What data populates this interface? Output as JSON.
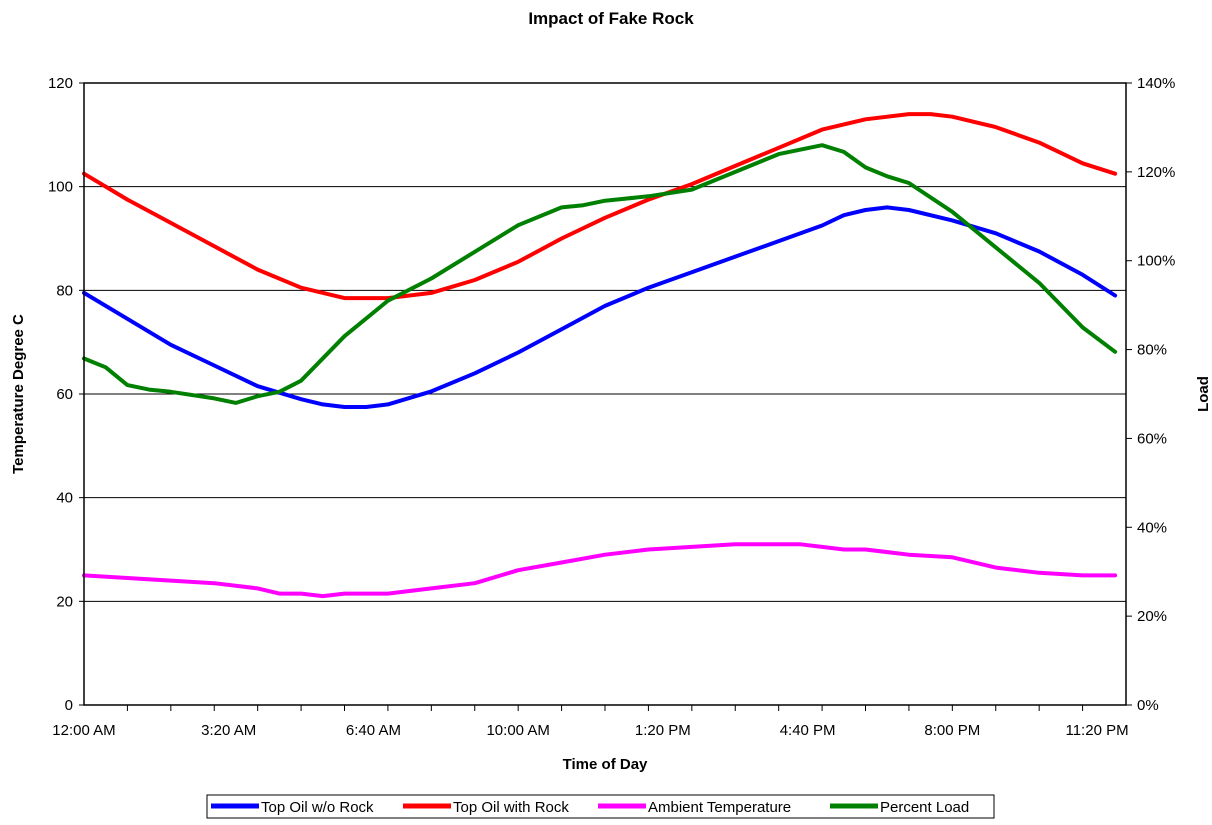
{
  "chart_data": {
    "type": "line",
    "title": "Impact of Fake Rock",
    "xlabel": "Time of Day",
    "ylabel": "Temperature Degree C",
    "y2label": "Load",
    "ylim": [
      0,
      120
    ],
    "y2lim": [
      0,
      1.4
    ],
    "y_ticks": [
      "0",
      "20",
      "40",
      "60",
      "80",
      "100",
      "120"
    ],
    "y2_ticks": [
      "0%",
      "20%",
      "40%",
      "60%",
      "80%",
      "100%",
      "120%",
      "140%"
    ],
    "x_ticks": [
      "12:00 AM",
      "3:20 AM",
      "6:40 AM",
      "10:00 AM",
      "1:20 PM",
      "4:40 PM",
      "8:00 PM",
      "11:20 PM"
    ],
    "x_tick_hours": [
      0,
      3.333,
      6.667,
      10,
      13.333,
      16.667,
      20,
      23.333
    ],
    "xlim_hours": [
      0,
      24
    ],
    "grid": "horizontal",
    "legend_position": "bottom",
    "series": [
      {
        "name": "Top Oil w/o Rock",
        "axis": "left",
        "color": "#0000ff",
        "x_hours": [
          0,
          1,
          2,
          3,
          4,
          5,
          5.5,
          6,
          6.5,
          7,
          8,
          9,
          10,
          11,
          12,
          13,
          14,
          15,
          16,
          17,
          17.5,
          18,
          18.5,
          19,
          20,
          21,
          22,
          23,
          23.75
        ],
        "values": [
          79.5,
          74.5,
          69.5,
          65.5,
          61.5,
          59,
          58,
          57.5,
          57.5,
          58,
          60.5,
          64,
          68,
          72.5,
          77,
          80.5,
          83.5,
          86.5,
          89.5,
          92.5,
          94.5,
          95.5,
          96,
          95.5,
          93.5,
          91,
          87.5,
          83,
          79
        ]
      },
      {
        "name": "Top Oil with Rock",
        "axis": "left",
        "color": "#ff0000",
        "x_hours": [
          0,
          1,
          2,
          3,
          4,
          5,
          6,
          6.5,
          7,
          8,
          9,
          10,
          11,
          12,
          13,
          14,
          15,
          16,
          17,
          18,
          19,
          19.5,
          20,
          21,
          22,
          23,
          23.75
        ],
        "values": [
          102.5,
          97.5,
          93,
          88.5,
          84,
          80.5,
          78.5,
          78.5,
          78.5,
          79.5,
          82,
          85.5,
          90,
          94,
          97.5,
          100.5,
          104,
          107.5,
          111,
          113,
          114,
          114,
          113.5,
          111.5,
          108.5,
          104.5,
          102.5
        ]
      },
      {
        "name": "Ambient Temperature",
        "axis": "left",
        "color": "#ff00ff",
        "x_hours": [
          0,
          1,
          2,
          3,
          4,
          4.5,
          5,
          5.5,
          6,
          7,
          8,
          9,
          10,
          11,
          12,
          13,
          14,
          15,
          15.5,
          16,
          16.5,
          17,
          17.5,
          18,
          19,
          20,
          21,
          22,
          23,
          23.75
        ],
        "values": [
          25,
          24.5,
          24,
          23.5,
          22.5,
          21.5,
          21.5,
          21,
          21.5,
          21.5,
          22.5,
          23.5,
          26,
          27.5,
          29,
          30,
          30.5,
          31,
          31,
          31,
          31,
          30.5,
          30,
          30,
          29,
          28.5,
          26.5,
          25.5,
          25,
          25
        ]
      },
      {
        "name": "Percent Load",
        "axis": "right",
        "color": "#008000",
        "x_hours": [
          0,
          0.5,
          1,
          1.5,
          2,
          3,
          3.5,
          4,
          4.5,
          5,
          6,
          7,
          8,
          9,
          10,
          11,
          11.5,
          12,
          13,
          14,
          15,
          16,
          17,
          17.5,
          18,
          18.5,
          19,
          20,
          21,
          22,
          23,
          23.75
        ],
        "values": [
          0.78,
          0.76,
          0.72,
          0.71,
          0.705,
          0.69,
          0.68,
          0.695,
          0.705,
          0.73,
          0.83,
          0.91,
          0.96,
          1.02,
          1.08,
          1.12,
          1.125,
          1.135,
          1.145,
          1.16,
          1.2,
          1.24,
          1.26,
          1.245,
          1.21,
          1.19,
          1.175,
          1.11,
          1.03,
          0.95,
          0.85,
          0.795
        ]
      }
    ]
  }
}
